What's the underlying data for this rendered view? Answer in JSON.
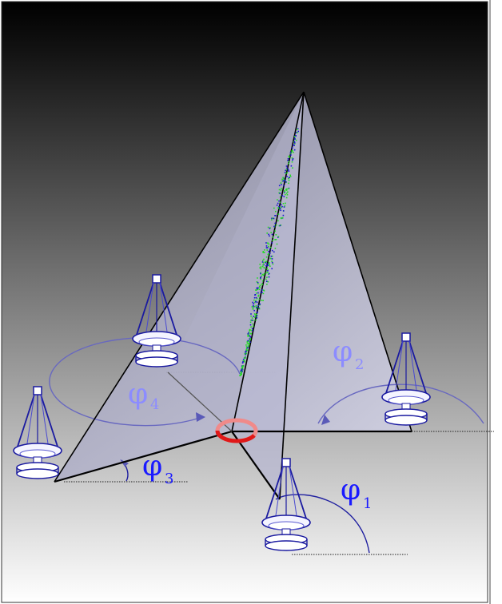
{
  "labels": {
    "phi1": {
      "symbol": "φ",
      "index": "1",
      "color": "#1a1aff"
    },
    "phi2": {
      "symbol": "φ",
      "index": "2",
      "color": "#8c8cff"
    },
    "phi3": {
      "symbol": "φ",
      "index": "3",
      "color": "#1a1aff"
    },
    "phi4": {
      "symbol": "φ",
      "index": "4",
      "color": "#8c8cff"
    }
  },
  "colors": {
    "background_top": "#000000",
    "background_bottom": "#ffffff",
    "pyramid_face": "#c8c8dc",
    "edge": "#000000",
    "arc": "#6868c0",
    "center_ring": "#e02020",
    "particles_green": "#22dd22",
    "particles_blue": "#1818cc"
  },
  "icons": [
    "radar-dish-icon-1",
    "radar-dish-icon-2",
    "radar-dish-icon-3",
    "radar-dish-icon-4"
  ]
}
